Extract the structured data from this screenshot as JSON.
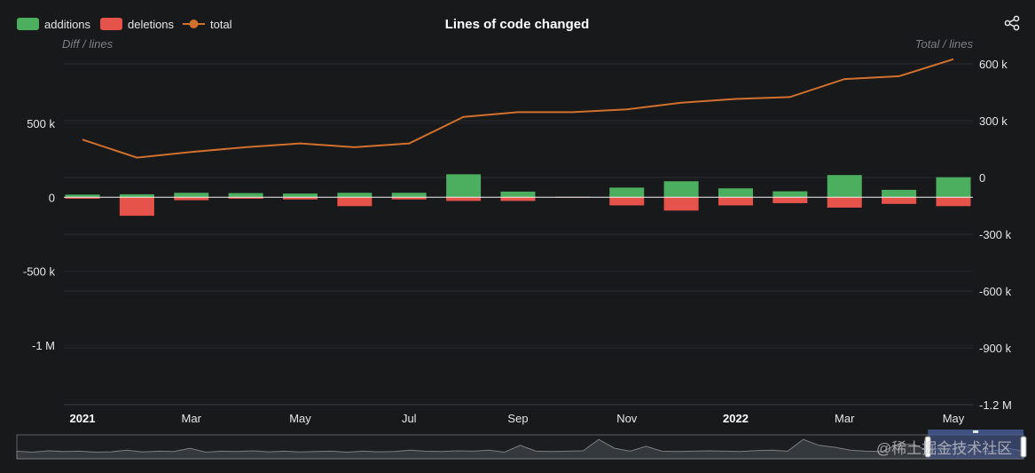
{
  "chart_data": {
    "type": "bar",
    "title": "Lines of code changed",
    "ylabel_left": "Diff / lines",
    "ylabel_right": "Total / lines",
    "left_axis": {
      "range": [
        -1400000,
        900000
      ],
      "ticks": [
        500000,
        0,
        -500000,
        -1000000
      ],
      "tick_labels": [
        "500 k",
        "0",
        "-500 k",
        "-1 M"
      ]
    },
    "right_axis": {
      "range": [
        -1200000,
        600000
      ],
      "ticks": [
        600000,
        300000,
        0,
        -300000,
        -600000,
        -900000,
        -1200000
      ],
      "tick_labels": [
        "600 k",
        "300 k",
        "0",
        "-300 k",
        "-600 k",
        "-900 k",
        "-1.2 M"
      ]
    },
    "x_axis": {
      "tick_labels": [
        {
          "label": "2021",
          "pos": 0,
          "bold": true
        },
        {
          "label": "Mar",
          "pos": 2,
          "bold": false
        },
        {
          "label": "May",
          "pos": 4,
          "bold": false
        },
        {
          "label": "Jul",
          "pos": 6,
          "bold": false
        },
        {
          "label": "Sep",
          "pos": 8,
          "bold": false
        },
        {
          "label": "Nov",
          "pos": 10,
          "bold": false
        },
        {
          "label": "2022",
          "pos": 12,
          "bold": true
        },
        {
          "label": "Mar",
          "pos": 14,
          "bold": false
        },
        {
          "label": "May",
          "pos": 16,
          "bold": false
        }
      ]
    },
    "categories": [
      "2021-01",
      "2021-02",
      "2021-03",
      "2021-04",
      "2021-05",
      "2021-06",
      "2021-07",
      "2021-08",
      "2021-09",
      "2021-10",
      "2021-11",
      "2021-12",
      "2022-01",
      "2022-02",
      "2022-03",
      "2022-04",
      "2022-05"
    ],
    "series": [
      {
        "name": "additions",
        "type": "bar",
        "axis": "left",
        "color": "#4caf5f",
        "values": [
          18000,
          20000,
          30000,
          28000,
          25000,
          30000,
          30000,
          155000,
          38000,
          3000,
          65000,
          108000,
          60000,
          40000,
          150000,
          50000,
          135000
        ]
      },
      {
        "name": "deletions",
        "type": "bar",
        "axis": "left",
        "color": "#e5534b",
        "values": [
          -10000,
          -125000,
          -20000,
          -10000,
          -15000,
          -60000,
          -15000,
          -25000,
          -25000,
          -3000,
          -55000,
          -90000,
          -55000,
          -40000,
          -70000,
          -45000,
          -60000
        ]
      },
      {
        "name": "total",
        "type": "line",
        "axis": "right",
        "color": "#d2702e",
        "values": [
          200000,
          105000,
          135000,
          160000,
          180000,
          160000,
          180000,
          320000,
          345000,
          345000,
          360000,
          395000,
          415000,
          425000,
          520000,
          535000,
          625000
        ]
      }
    ],
    "legend_position": "top-left",
    "grid": true
  },
  "toolbar": {
    "share_icon": "share-icon"
  },
  "data_zoom": {
    "overview": [
      0.3,
      0.25,
      0.32,
      0.28,
      0.3,
      0.25,
      0.27,
      0.35,
      0.26,
      0.3,
      0.28,
      0.45,
      0.25,
      0.3,
      0.28,
      0.32,
      0.27,
      0.3,
      0.26,
      0.28,
      0.3,
      0.25,
      0.3,
      0.27,
      0.28,
      0.35,
      0.3,
      0.28,
      0.32,
      0.3,
      0.35,
      0.25,
      0.6,
      0.3,
      0.28,
      0.3,
      0.32,
      0.9,
      0.45,
      0.3,
      0.55,
      0.3,
      0.28,
      0.3,
      0.32,
      0.3,
      0.28,
      0.33,
      0.35,
      0.3,
      0.9,
      0.6,
      0.5,
      0.35,
      0.3,
      0.28,
      0.65,
      0.65,
      0.3,
      0.55,
      0.7,
      0.3,
      0.3,
      0.45,
      0.3
    ],
    "window_start": 0.905,
    "window_end": 1.0
  },
  "watermark": "@稀土掘金技术社区"
}
